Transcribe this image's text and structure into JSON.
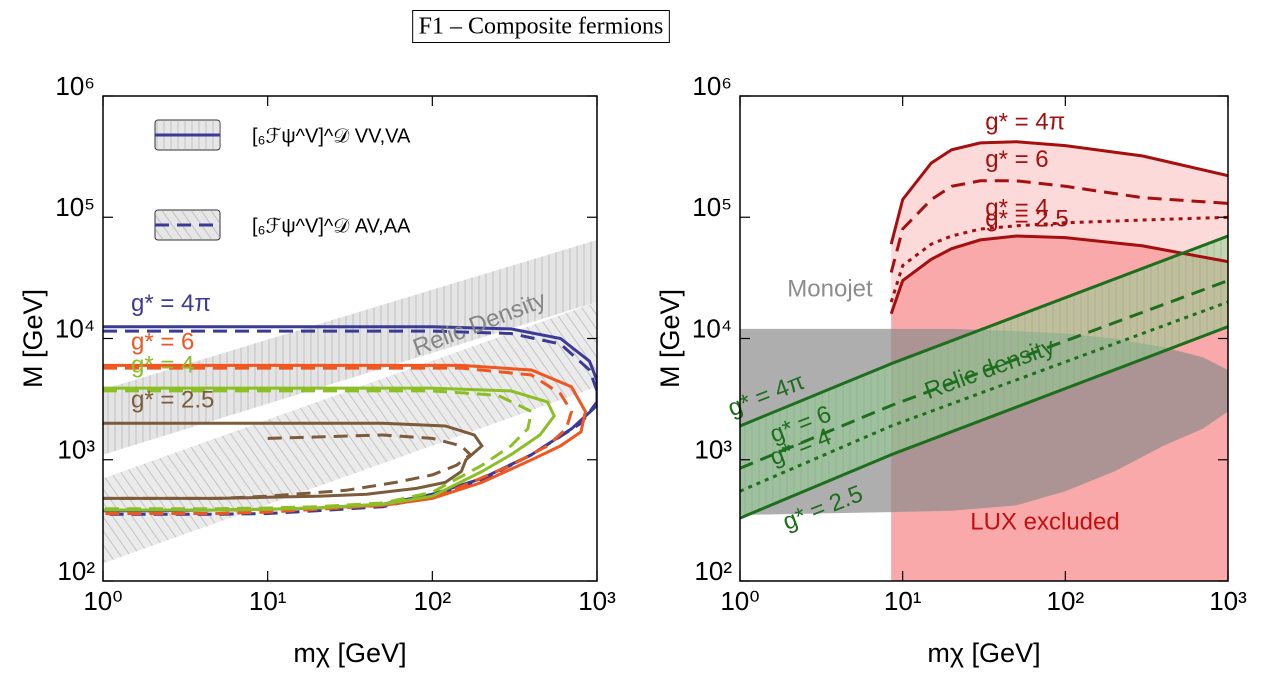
{
  "title": "F1 – Composite fermions",
  "chart_data": [
    {
      "type": "line",
      "log_x": true,
      "log_y": true,
      "xlabel": "mχ   [GeV]",
      "ylabel": "M   [GeV]",
      "xlim": [
        1,
        1000
      ],
      "ylim": [
        100,
        1000000
      ],
      "xticks": [
        {
          "value": 1,
          "label": "10⁰"
        },
        {
          "value": 10,
          "label": "10¹"
        },
        {
          "value": 100,
          "label": "10²"
        },
        {
          "value": 1000,
          "label": "10³"
        }
      ],
      "yticks": [
        {
          "value": 100,
          "label": "10²"
        },
        {
          "value": 1000,
          "label": "10³"
        },
        {
          "value": 10000,
          "label": "10⁴"
        },
        {
          "value": 100000,
          "label": "10⁵"
        },
        {
          "value": 1000000,
          "label": "10⁶"
        }
      ],
      "bands": [
        {
          "x": [
            1,
            1000
          ],
          "lower": [
            1100,
            20000
          ],
          "upper": [
            3800,
            65000
          ],
          "color": "#c4c4c4",
          "hatch": "vertical"
        },
        {
          "x": [
            1,
            1000
          ],
          "lower": [
            140,
            4000
          ],
          "upper": [
            700,
            20000
          ],
          "color": "#d2d2d2",
          "hatch": "diagonal"
        }
      ],
      "legend": [
        {
          "name": "[₆ℱψ^V]^𝒟 VV,VA",
          "dash": "solid",
          "hatch": "vertical"
        },
        {
          "name": "[₆ℱψ^V]^𝒟 AV,AA",
          "dash": "dashed",
          "hatch": "diagonal"
        }
      ],
      "legend_color": "#3b3b96",
      "series": [
        {
          "label": "g* = 4π",
          "color": "#3b3b96",
          "dash": "solid",
          "x": [
            1,
            100,
            300,
            600,
            900,
            1000,
            1000,
            700,
            400,
            200,
            100,
            50,
            20,
            10,
            5,
            2,
            1
          ],
          "values": [
            12500,
            12500,
            12000,
            10000,
            6500,
            4500,
            2800,
            1800,
            1100,
            700,
            520,
            430,
            400,
            390,
            385,
            380,
            380
          ]
        },
        {
          "color": "#3b3b96",
          "dash": "dashed",
          "x": [
            1,
            100,
            300,
            600,
            900,
            1000,
            1000,
            800,
            400,
            200,
            100,
            50,
            20,
            10,
            5,
            2,
            1
          ],
          "values": [
            11500,
            11500,
            11000,
            9000,
            5500,
            3700,
            3000,
            2000,
            1100,
            680,
            500,
            410,
            380,
            360,
            355,
            355,
            355
          ]
        },
        {
          "label": "g* = 6",
          "color": "#f0561f",
          "dash": "solid",
          "x": [
            1,
            150,
            400,
            700,
            850,
            800,
            600,
            400,
            200,
            100,
            50,
            20,
            10,
            5,
            2,
            1
          ],
          "values": [
            6000,
            6000,
            5500,
            4000,
            2500,
            1700,
            1300,
            1000,
            650,
            480,
            420,
            400,
            390,
            385,
            385,
            385
          ]
        },
        {
          "color": "#f0561f",
          "dash": "dashed",
          "x": [
            1,
            150,
            400,
            600,
            700,
            650,
            500,
            300,
            150,
            100,
            50,
            20,
            10,
            5,
            2,
            1
          ],
          "values": [
            5700,
            5700,
            5000,
            3500,
            2500,
            1800,
            1300,
            900,
            600,
            480,
            420,
            390,
            370,
            360,
            360,
            360
          ]
        },
        {
          "label": "g* = 4",
          "color": "#8cbf26",
          "dash": "solid",
          "x": [
            1,
            100,
            300,
            500,
            550,
            450,
            300,
            200,
            100,
            50,
            20,
            10,
            5,
            2,
            1
          ],
          "values": [
            3900,
            3900,
            3700,
            3000,
            2300,
            1600,
            1100,
            800,
            500,
            430,
            400,
            390,
            385,
            385,
            385
          ]
        },
        {
          "color": "#8cbf26",
          "dash": "dashed",
          "x": [
            1,
            100,
            250,
            400,
            380,
            300,
            200,
            100,
            50,
            20,
            10,
            5,
            2,
            1
          ],
          "values": [
            3700,
            3700,
            3400,
            2500,
            1800,
            1300,
            900,
            540,
            440,
            410,
            400,
            395,
            395,
            395
          ]
        },
        {
          "label": "g* = 2.5",
          "color": "#7b5b3a",
          "dash": "solid",
          "x": [
            1,
            50,
            120,
            180,
            200,
            160,
            150,
            120,
            80,
            40,
            20,
            10,
            5,
            2,
            1
          ],
          "values": [
            2000,
            2000,
            1900,
            1600,
            1300,
            1000,
            800,
            650,
            580,
            520,
            500,
            490,
            480,
            480,
            480
          ]
        },
        {
          "color": "#7b5b3a",
          "dash": "dashed",
          "x": [
            10,
            50,
            100,
            150,
            170,
            140,
            100,
            60,
            30,
            10,
            5,
            2,
            1
          ],
          "values": [
            1500,
            1600,
            1500,
            1300,
            1100,
            900,
            750,
            650,
            560,
            500,
            480,
            480,
            480
          ]
        }
      ],
      "annotations": [
        {
          "text": "Relic Density",
          "color": "#858585"
        }
      ]
    },
    {
      "type": "line",
      "log_x": true,
      "log_y": true,
      "xlabel": "mχ   [GeV]",
      "ylabel": "M   [GeV]",
      "xlim": [
        1,
        1000
      ],
      "ylim": [
        100,
        1000000
      ],
      "xticks": [
        {
          "value": 1,
          "label": "10⁰"
        },
        {
          "value": 10,
          "label": "10¹"
        },
        {
          "value": 100,
          "label": "10²"
        },
        {
          "value": 1000,
          "label": "10³"
        }
      ],
      "yticks": [
        {
          "value": 100,
          "label": "10²"
        },
        {
          "value": 1000,
          "label": "10³"
        },
        {
          "value": 10000,
          "label": "10⁴"
        },
        {
          "value": 100000,
          "label": "10⁵"
        },
        {
          "value": 1000000,
          "label": "10⁶"
        }
      ],
      "regions": [
        {
          "color": "#8c8c8c",
          "x": [
            1,
            8.5,
            20,
            50,
            100,
            200,
            400,
            700,
            1000,
            1000,
            700,
            400,
            200,
            100,
            50,
            20,
            8.5,
            3,
            1
          ],
          "values": [
            12000,
            12000,
            12000,
            11500,
            11000,
            10000,
            8500,
            7000,
            5500,
            2500,
            1800,
            1300,
            800,
            550,
            420,
            380,
            370,
            360,
            350
          ]
        }
      ],
      "fill_between": {
        "series": [
          4,
          7
        ],
        "color": "#8fd18f",
        "hatch": "vertical"
      },
      "series": [
        {
          "label": "g* = 4π",
          "color": "#a50f0f",
          "dash": "solid",
          "fill": "#fcdada",
          "x": [
            8.5,
            10,
            15,
            20,
            30,
            50,
            100,
            300,
            1000
          ],
          "values": [
            60000,
            140000,
            280000,
            360000,
            410000,
            420000,
            390000,
            320000,
            220000
          ]
        },
        {
          "label": "g* = 6",
          "color": "#a50f0f",
          "dash": "dashed",
          "x": [
            8.5,
            10,
            15,
            20,
            30,
            50,
            100,
            300,
            1000
          ],
          "values": [
            35000,
            80000,
            140000,
            180000,
            200000,
            200000,
            180000,
            145000,
            130000
          ]
        },
        {
          "label": "g* = 4",
          "color": "#a50f0f",
          "dash": "dotted",
          "x": [
            8.5,
            10,
            15,
            20,
            30,
            50,
            100,
            300,
            1000
          ],
          "values": [
            20000,
            40000,
            60000,
            70000,
            80000,
            85000,
            90000,
            95000,
            100000
          ]
        },
        {
          "label": "g* = 2.5",
          "color": "#a50f0f",
          "dash": "solid",
          "fill": "#f9a9a9",
          "x": [
            8.5,
            10,
            15,
            20,
            30,
            50,
            100,
            300,
            1000
          ],
          "values": [
            16000,
            30000,
            45000,
            55000,
            65000,
            70000,
            68000,
            58000,
            43000
          ]
        },
        {
          "label": "g* = 4π",
          "color": "#1d6e1d",
          "dash": "solid",
          "x": [
            1,
            8.5,
            1000
          ],
          "values": [
            1900,
            6200,
            70000
          ]
        },
        {
          "label": "g* = 6",
          "color": "#1d6e1d",
          "dash": "dashed",
          "x": [
            1,
            8.5,
            1000
          ],
          "values": [
            850,
            2800,
            30000
          ]
        },
        {
          "label": "g* = 4",
          "color": "#1d6e1d",
          "dash": "dotted",
          "x": [
            1,
            8.5,
            1000
          ],
          "values": [
            550,
            1900,
            20000
          ]
        },
        {
          "label": "g* = 2.5",
          "color": "#1d6e1d",
          "dash": "solid",
          "x": [
            1,
            8.5,
            1000
          ],
          "values": [
            330,
            1100,
            12500
          ]
        }
      ],
      "annotations": [
        {
          "text": "Monojet",
          "color": "#8c8c8c"
        },
        {
          "text": "LUX excluded",
          "color": "#c01010"
        },
        {
          "text": "Relic density",
          "color": "#1d6e1d"
        }
      ]
    }
  ]
}
